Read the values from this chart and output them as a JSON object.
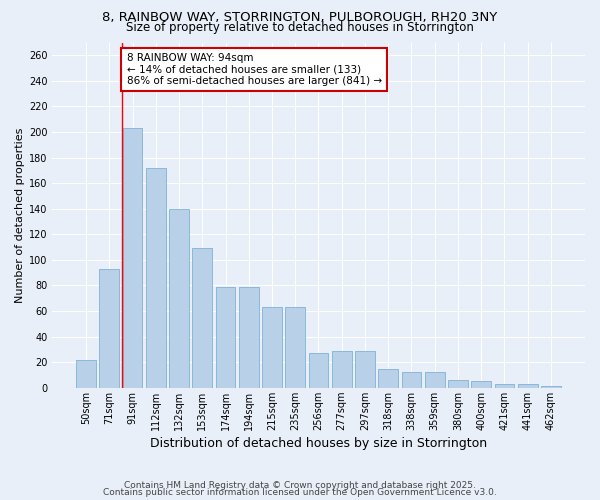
{
  "title": "8, RAINBOW WAY, STORRINGTON, PULBOROUGH, RH20 3NY",
  "subtitle": "Size of property relative to detached houses in Storrington",
  "xlabel": "Distribution of detached houses by size in Storrington",
  "ylabel": "Number of detached properties",
  "categories": [
    "50sqm",
    "71sqm",
    "91sqm",
    "112sqm",
    "132sqm",
    "153sqm",
    "174sqm",
    "194sqm",
    "215sqm",
    "235sqm",
    "256sqm",
    "277sqm",
    "297sqm",
    "318sqm",
    "338sqm",
    "359sqm",
    "380sqm",
    "400sqm",
    "421sqm",
    "441sqm",
    "462sqm"
  ],
  "values": [
    22,
    93,
    203,
    172,
    140,
    109,
    79,
    79,
    63,
    63,
    27,
    29,
    29,
    15,
    12,
    12,
    6,
    5,
    3,
    3,
    1
  ],
  "bar_color": "#b8d0e8",
  "bar_edge_color": "#6fa8d0",
  "red_line_index": 2,
  "annotation_text": "8 RAINBOW WAY: 94sqm\n← 14% of detached houses are smaller (133)\n86% of semi-detached houses are larger (841) →",
  "annotation_box_color": "#ffffff",
  "annotation_box_edge": "#cc0000",
  "ylim": [
    0,
    270
  ],
  "yticks": [
    0,
    20,
    40,
    60,
    80,
    100,
    120,
    140,
    160,
    180,
    200,
    220,
    240,
    260
  ],
  "background_color": "#e8eff8",
  "grid_color": "#ffffff",
  "footer_line1": "Contains HM Land Registry data © Crown copyright and database right 2025.",
  "footer_line2": "Contains public sector information licensed under the Open Government Licence v3.0.",
  "title_fontsize": 9.5,
  "subtitle_fontsize": 8.5,
  "xlabel_fontsize": 9,
  "ylabel_fontsize": 8,
  "tick_fontsize": 7,
  "annotation_fontsize": 7.5,
  "footer_fontsize": 6.5
}
